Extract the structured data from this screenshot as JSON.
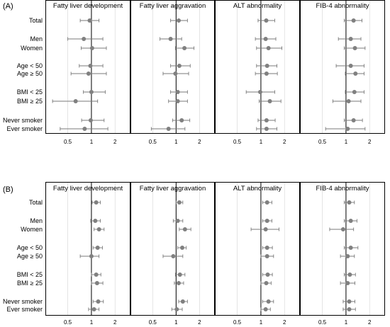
{
  "chart_data": [
    {
      "type": "scatter",
      "label": "(A)",
      "rows": [
        "Total",
        "Men",
        "Women",
        "Age < 50",
        "Age ≥ 50",
        "BMI < 25",
        "BMI ≥ 25",
        "Never smoker",
        "Ever smoker"
      ],
      "x_ticks": [
        "0.5",
        "1",
        "2"
      ],
      "xlim": [
        0.3,
        2.3
      ],
      "reference_line": 1,
      "grid": true,
      "panels": [
        {
          "title": "Fatty liver development",
          "est": [
            0.95,
            0.8,
            1.02,
            0.97,
            0.92,
            1.0,
            0.63,
            0.98,
            0.82
          ],
          "low": [
            0.72,
            0.5,
            0.74,
            0.7,
            0.55,
            0.79,
            0.32,
            0.75,
            0.4
          ],
          "high": [
            1.25,
            1.4,
            1.55,
            1.4,
            1.55,
            1.5,
            1.2,
            1.45,
            1.62
          ]
        },
        {
          "title": "Fatty liver aggravation",
          "est": [
            1.08,
            0.85,
            1.28,
            1.1,
            0.98,
            1.05,
            1.05,
            1.18,
            0.8
          ],
          "low": [
            0.85,
            0.62,
            0.98,
            0.85,
            0.68,
            0.85,
            0.8,
            0.9,
            0.48
          ],
          "high": [
            1.4,
            1.18,
            1.7,
            1.52,
            1.45,
            1.4,
            1.4,
            1.5,
            1.3
          ]
        },
        {
          "title": "ALT abnormality",
          "est": [
            1.17,
            1.15,
            1.25,
            1.2,
            1.18,
            0.98,
            1.3,
            1.18,
            1.18
          ],
          "low": [
            0.92,
            0.85,
            0.88,
            0.88,
            0.85,
            0.65,
            0.95,
            0.92,
            0.88
          ],
          "high": [
            1.5,
            1.55,
            1.85,
            1.6,
            1.62,
            1.5,
            1.8,
            1.52,
            1.6
          ]
        },
        {
          "title": "FIB-4 abnormality",
          "est": [
            1.25,
            1.15,
            1.3,
            1.15,
            1.32,
            1.28,
            1.08,
            1.25,
            1.05
          ],
          "low": [
            0.95,
            0.8,
            0.95,
            0.75,
            0.98,
            0.98,
            0.68,
            0.95,
            0.55
          ],
          "high": [
            1.6,
            1.55,
            1.75,
            1.7,
            1.7,
            1.7,
            1.55,
            1.62,
            1.75
          ]
        }
      ]
    },
    {
      "type": "scatter",
      "label": "(B)",
      "rows": [
        "Total",
        "Men",
        "Women",
        "Age < 50",
        "Age ≥ 50",
        "BMI < 25",
        "BMI ≥ 25",
        "Never smoker",
        "Ever smoker"
      ],
      "x_ticks": [
        "0.5",
        "1",
        "2"
      ],
      "xlim": [
        0.3,
        2.3
      ],
      "reference_line": 1,
      "grid": true,
      "panels": [
        {
          "title": "Fatty liver development",
          "est": [
            1.15,
            1.12,
            1.25,
            1.2,
            1.0,
            1.15,
            1.18,
            1.22,
            1.08
          ],
          "low": [
            1.02,
            0.98,
            1.08,
            1.05,
            0.72,
            1.0,
            1.0,
            1.05,
            0.92
          ],
          "high": [
            1.3,
            1.3,
            1.45,
            1.38,
            1.25,
            1.32,
            1.4,
            1.42,
            1.25
          ]
        },
        {
          "title": "Fatty liver aggravation",
          "est": [
            1.1,
            1.05,
            1.3,
            1.2,
            0.92,
            1.12,
            1.08,
            1.22,
            1.02
          ],
          "low": [
            1.0,
            0.92,
            1.1,
            1.05,
            0.68,
            0.98,
            0.95,
            1.08,
            0.88
          ],
          "high": [
            1.22,
            1.22,
            1.55,
            1.35,
            1.22,
            1.3,
            1.25,
            1.4,
            1.2
          ]
        },
        {
          "title": "ALT abnormality",
          "est": [
            1.2,
            1.2,
            1.15,
            1.2,
            1.2,
            1.22,
            1.17,
            1.25,
            1.15
          ],
          "low": [
            1.05,
            1.05,
            0.75,
            1.05,
            1.0,
            1.05,
            1.0,
            1.05,
            1.0
          ],
          "high": [
            1.38,
            1.38,
            1.7,
            1.4,
            1.45,
            1.4,
            1.35,
            1.45,
            1.32
          ]
        },
        {
          "title": "FIB-4 abnormality",
          "est": [
            1.1,
            1.15,
            0.92,
            1.15,
            1.05,
            1.12,
            1.05,
            1.1,
            1.1
          ],
          "low": [
            0.95,
            0.95,
            0.62,
            0.95,
            0.85,
            0.95,
            0.85,
            0.92,
            0.92
          ],
          "high": [
            1.28,
            1.38,
            1.25,
            1.42,
            1.28,
            1.32,
            1.3,
            1.3,
            1.32
          ]
        }
      ]
    }
  ]
}
